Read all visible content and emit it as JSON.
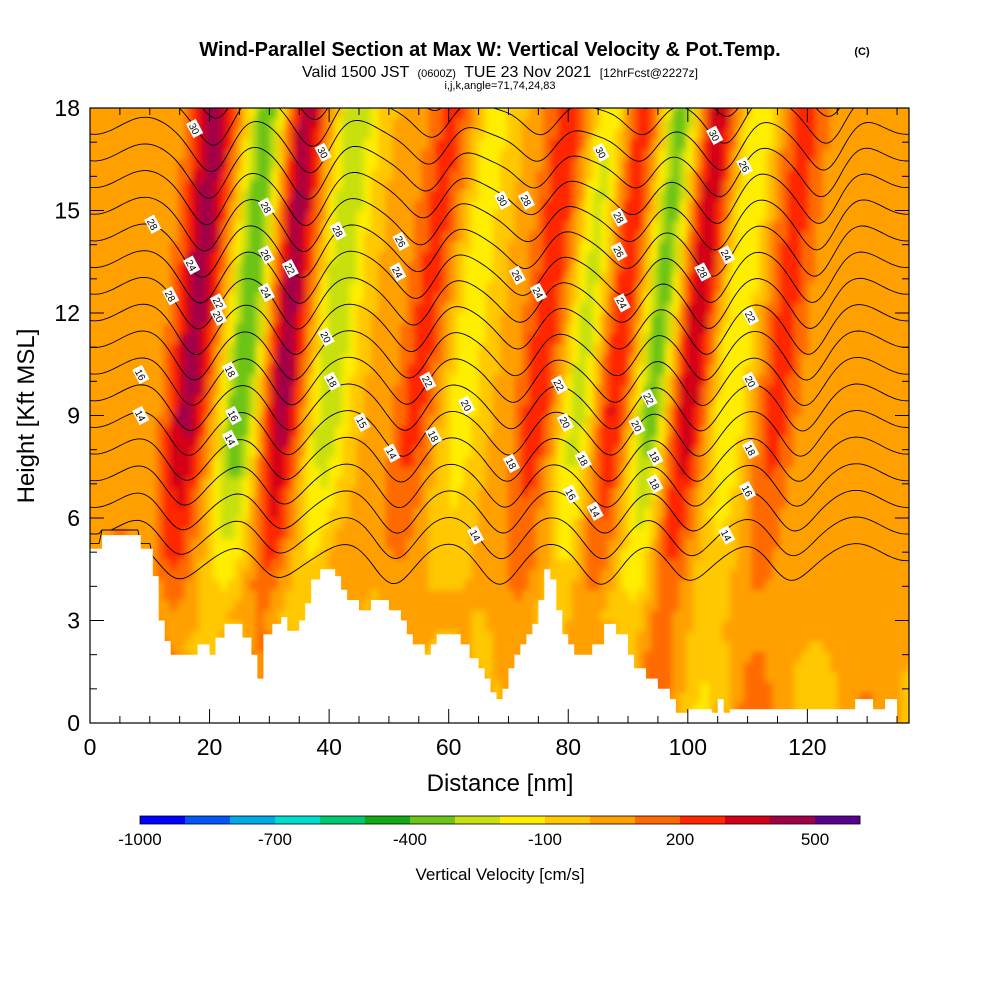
{
  "header": {
    "title": "Wind-Parallel Section at Max W: Vertical Velocity & Pot.Temp.",
    "copyright": "(C)",
    "valid_prefix": "Valid 1500 JST",
    "valid_zulu": "(0600Z)",
    "valid_date": "TUE 23 Nov 2021",
    "forecast_info": "[12hrFcst@2227z]",
    "section_params": "i,j,k,angle=71,74,24,83"
  },
  "chart_data": {
    "type": "heatmap",
    "title": "Wind-Parallel Section at Max W: Vertical Velocity & Pot.Temp.",
    "xlabel": "Distance [nm]",
    "ylabel": "Height [Kft MSL]",
    "xlim": [
      0,
      137
    ],
    "ylim": [
      0,
      18
    ],
    "x_ticks": [
      "0",
      "20",
      "40",
      "60",
      "80",
      "100",
      "120"
    ],
    "y_ticks": [
      "0",
      "3",
      "6",
      "9",
      "12",
      "15",
      "18"
    ],
    "colorbar": {
      "label": "Vertical Velocity [cm/s]",
      "tick_labels": [
        "-1000",
        "-700",
        "-400",
        "-100",
        "200",
        "500"
      ],
      "colors": [
        "#0000ff",
        "#0057f5",
        "#00a8e8",
        "#00ddd0",
        "#00c870",
        "#14a814",
        "#6cc418",
        "#c8e010",
        "#ffee00",
        "#ffc800",
        "#ffa000",
        "#ff6a00",
        "#ff2800",
        "#d40018",
        "#a00048",
        "#5a0090"
      ]
    },
    "terrain_top_kft": [
      [
        0,
        5.1
      ],
      [
        2,
        5.1
      ],
      [
        2,
        5.5
      ],
      [
        8.5,
        5.5
      ],
      [
        8.5,
        5.1
      ],
      [
        10.5,
        5.1
      ],
      [
        10.5,
        4.3
      ],
      [
        11.5,
        4.3
      ],
      [
        11.5,
        3
      ],
      [
        12.5,
        3
      ],
      [
        12.5,
        2.4
      ],
      [
        13.5,
        2.4
      ],
      [
        13.5,
        2
      ],
      [
        18,
        2
      ],
      [
        18,
        2.3
      ],
      [
        20,
        2.3
      ],
      [
        20,
        2
      ],
      [
        21,
        2
      ],
      [
        21,
        2.5
      ],
      [
        22.5,
        2.5
      ],
      [
        22.5,
        2.9
      ],
      [
        25.5,
        2.9
      ],
      [
        25.5,
        2.5
      ],
      [
        27,
        2.5
      ],
      [
        27,
        2
      ],
      [
        28,
        2
      ],
      [
        28,
        1.3
      ],
      [
        29,
        1.3
      ],
      [
        29,
        2.6
      ],
      [
        30.5,
        2.6
      ],
      [
        30.5,
        2.9
      ],
      [
        32,
        2.9
      ],
      [
        32,
        3.1
      ],
      [
        33,
        3.1
      ],
      [
        33,
        2.7
      ],
      [
        35,
        2.7
      ],
      [
        35,
        3
      ],
      [
        36,
        3
      ],
      [
        36,
        3.5
      ],
      [
        37,
        3.5
      ],
      [
        37,
        4.2
      ],
      [
        38.5,
        4.2
      ],
      [
        38.5,
        4.5
      ],
      [
        41,
        4.5
      ],
      [
        41,
        4.3
      ],
      [
        42,
        4.3
      ],
      [
        42,
        3.9
      ],
      [
        43,
        3.9
      ],
      [
        43,
        3.6
      ],
      [
        45,
        3.6
      ],
      [
        45,
        3.3
      ],
      [
        47,
        3.3
      ],
      [
        47,
        3.6
      ],
      [
        50,
        3.6
      ],
      [
        50,
        3.3
      ],
      [
        52,
        3.3
      ],
      [
        52,
        3.0
      ],
      [
        53,
        3.0
      ],
      [
        53,
        2.6
      ],
      [
        54,
        2.6
      ],
      [
        54,
        2.3
      ],
      [
        56,
        2.3
      ],
      [
        56,
        2
      ],
      [
        57,
        2
      ],
      [
        57,
        2.3
      ],
      [
        58,
        2.3
      ],
      [
        58,
        2.6
      ],
      [
        62,
        2.6
      ],
      [
        62,
        2.3
      ],
      [
        63.5,
        2.3
      ],
      [
        63.5,
        1.9
      ],
      [
        65,
        1.9
      ],
      [
        65,
        1.6
      ],
      [
        66,
        1.6
      ],
      [
        66,
        1.3
      ],
      [
        67,
        1.3
      ],
      [
        67,
        0.9
      ],
      [
        68,
        0.9
      ],
      [
        68,
        0.7
      ],
      [
        69,
        0.7
      ],
      [
        69,
        1
      ],
      [
        70,
        1
      ],
      [
        70,
        1.6
      ],
      [
        71,
        1.6
      ],
      [
        71,
        2
      ],
      [
        72,
        2
      ],
      [
        72,
        2.3
      ],
      [
        73,
        2.3
      ],
      [
        73,
        2.6
      ],
      [
        74,
        2.6
      ],
      [
        74,
        2.9
      ],
      [
        75,
        2.9
      ],
      [
        75,
        3.6
      ],
      [
        76,
        3.6
      ],
      [
        76,
        4.5
      ],
      [
        77,
        4.5
      ],
      [
        77,
        4.2
      ],
      [
        78,
        4.2
      ],
      [
        78,
        3.3
      ],
      [
        79,
        3.3
      ],
      [
        79,
        2.6
      ],
      [
        80,
        2.6
      ],
      [
        80,
        2.3
      ],
      [
        81,
        2.3
      ],
      [
        81,
        2
      ],
      [
        84,
        2
      ],
      [
        84,
        2.3
      ],
      [
        86,
        2.3
      ],
      [
        86,
        2.9
      ],
      [
        88,
        2.9
      ],
      [
        88,
        2.6
      ],
      [
        90,
        2.6
      ],
      [
        90,
        2
      ],
      [
        91,
        2
      ],
      [
        91,
        1.6
      ],
      [
        93,
        1.6
      ],
      [
        93,
        1.3
      ],
      [
        95,
        1.3
      ],
      [
        95,
        1
      ],
      [
        97,
        1
      ],
      [
        97,
        0.7
      ],
      [
        98,
        0.7
      ],
      [
        98,
        0.3
      ],
      [
        100,
        0.3
      ],
      [
        100,
        0.4
      ],
      [
        104,
        0.4
      ],
      [
        104,
        0.3
      ],
      [
        105,
        0.3
      ],
      [
        105,
        0.7
      ],
      [
        106,
        0.7
      ],
      [
        106,
        0.3
      ],
      [
        107,
        0.3
      ],
      [
        107,
        0.4
      ],
      [
        128,
        0.4
      ],
      [
        128,
        0.7
      ],
      [
        131,
        0.7
      ],
      [
        131,
        0.4
      ],
      [
        133,
        0.4
      ],
      [
        133,
        0.7
      ],
      [
        135,
        0.7
      ],
      [
        135,
        0
      ]
    ],
    "updrafts": [
      {
        "x": 13.5,
        "tilt": 0.55,
        "strength": 420
      },
      {
        "x": 29.5,
        "tilt": 0.45,
        "strength": 450
      },
      {
        "x": 50.5,
        "tilt": 0.75,
        "strength": 230
      },
      {
        "x": 71.5,
        "tilt": 0.65,
        "strength": 260
      },
      {
        "x": 84.5,
        "tilt": 0.55,
        "strength": 330
      },
      {
        "x": 96.5,
        "tilt": 0.6,
        "strength": 420
      },
      {
        "x": 112,
        "tilt": 0.55,
        "strength": 230
      }
    ],
    "downdrafts": [
      {
        "x": 22.5,
        "tilt": 0.55,
        "strength": -440
      },
      {
        "x": 37,
        "tilt": 0.55,
        "strength": -300
      },
      {
        "x": 59,
        "tilt": 0.6,
        "strength": -180
      },
      {
        "x": 78.5,
        "tilt": 0.65,
        "strength": -310
      },
      {
        "x": 91,
        "tilt": 0.6,
        "strength": -430
      },
      {
        "x": 104,
        "tilt": 0.55,
        "strength": -230
      }
    ],
    "isentropes": {
      "levels": [
        13,
        14,
        15,
        16,
        17,
        18,
        19,
        20,
        21,
        22,
        23,
        24,
        25,
        26,
        27,
        28,
        29,
        30,
        31,
        32
      ],
      "labelled": [
        "14",
        "16",
        "18",
        "20",
        "22",
        "24",
        "26",
        "28",
        "30"
      ],
      "labels": [
        {
          "text": "30",
          "x": 17.5,
          "y": 17.4
        },
        {
          "text": "28",
          "x": 10.5,
          "y": 14.6
        },
        {
          "text": "24",
          "x": 17,
          "y": 13.4
        },
        {
          "text": "28",
          "x": 13.5,
          "y": 12.5
        },
        {
          "text": "22",
          "x": 21.5,
          "y": 12.3
        },
        {
          "text": "20",
          "x": 21.5,
          "y": 11.9
        },
        {
          "text": "16",
          "x": 8.5,
          "y": 10.2
        },
        {
          "text": "14",
          "x": 8.5,
          "y": 9.0
        },
        {
          "text": "18",
          "x": 23.5,
          "y": 10.3
        },
        {
          "text": "16",
          "x": 24,
          "y": 9.0
        },
        {
          "text": "14",
          "x": 23.5,
          "y": 8.3
        },
        {
          "text": "28",
          "x": 29.5,
          "y": 15.1
        },
        {
          "text": "26",
          "x": 29.5,
          "y": 13.7
        },
        {
          "text": "22",
          "x": 33.5,
          "y": 13.3
        },
        {
          "text": "24",
          "x": 29.5,
          "y": 12.6
        },
        {
          "text": "30",
          "x": 39,
          "y": 16.7
        },
        {
          "text": "28",
          "x": 41.5,
          "y": 14.4
        },
        {
          "text": "20",
          "x": 39.5,
          "y": 11.3
        },
        {
          "text": "18",
          "x": 40.5,
          "y": 10.0
        },
        {
          "text": "15",
          "x": 45.5,
          "y": 8.8
        },
        {
          "text": "14",
          "x": 50.5,
          "y": 7.9
        },
        {
          "text": "26",
          "x": 52,
          "y": 14.1
        },
        {
          "text": "24",
          "x": 51.5,
          "y": 13.2
        },
        {
          "text": "22",
          "x": 56.5,
          "y": 10.0
        },
        {
          "text": "18",
          "x": 57.5,
          "y": 8.4
        },
        {
          "text": "20",
          "x": 63,
          "y": 9.3
        },
        {
          "text": "30",
          "x": 69,
          "y": 15.3
        },
        {
          "text": "28",
          "x": 73,
          "y": 15.3
        },
        {
          "text": "26",
          "x": 71.5,
          "y": 13.1
        },
        {
          "text": "24",
          "x": 75,
          "y": 12.6
        },
        {
          "text": "18",
          "x": 70.5,
          "y": 7.6
        },
        {
          "text": "14",
          "x": 64.5,
          "y": 5.5
        },
        {
          "text": "22",
          "x": 78.5,
          "y": 9.9
        },
        {
          "text": "20",
          "x": 79.5,
          "y": 8.8
        },
        {
          "text": "16",
          "x": 80.5,
          "y": 6.7
        },
        {
          "text": "18",
          "x": 82.5,
          "y": 7.7
        },
        {
          "text": "14",
          "x": 84.5,
          "y": 6.2
        },
        {
          "text": "30",
          "x": 85.5,
          "y": 16.7
        },
        {
          "text": "28",
          "x": 88.5,
          "y": 14.8
        },
        {
          "text": "26",
          "x": 88.5,
          "y": 13.8
        },
        {
          "text": "24",
          "x": 89,
          "y": 12.3
        },
        {
          "text": "22",
          "x": 93.5,
          "y": 9.5
        },
        {
          "text": "20",
          "x": 91.5,
          "y": 8.7
        },
        {
          "text": "18",
          "x": 94.5,
          "y": 7.8
        },
        {
          "text": "18",
          "x": 94.5,
          "y": 7.0
        },
        {
          "text": "30",
          "x": 104.5,
          "y": 17.2
        },
        {
          "text": "26",
          "x": 109.5,
          "y": 16.3
        },
        {
          "text": "24",
          "x": 106.5,
          "y": 13.7
        },
        {
          "text": "28",
          "x": 102.5,
          "y": 13.2
        },
        {
          "text": "22",
          "x": 110.5,
          "y": 11.9
        },
        {
          "text": "20",
          "x": 110.5,
          "y": 10.0
        },
        {
          "text": "18",
          "x": 110.5,
          "y": 8.0
        },
        {
          "text": "16",
          "x": 110,
          "y": 6.8
        },
        {
          "text": "14",
          "x": 106.5,
          "y": 5.5
        }
      ]
    }
  }
}
